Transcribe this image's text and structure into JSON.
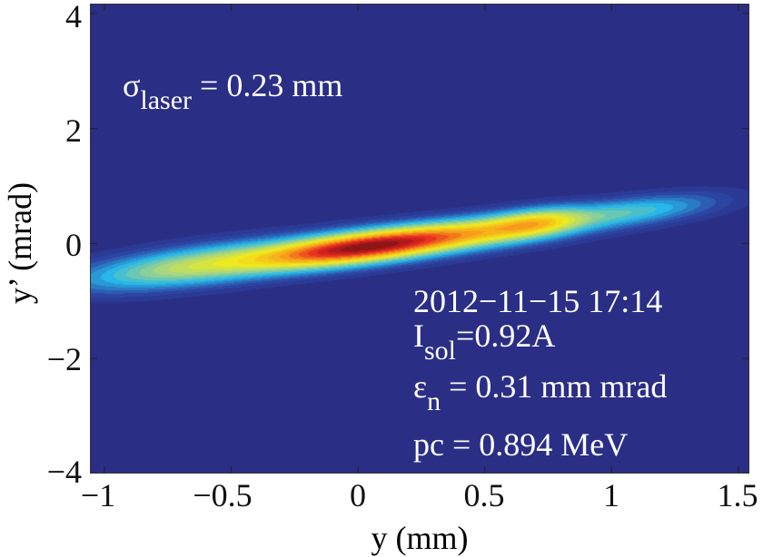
{
  "chart_data": {
    "type": "heatmap",
    "subtype": "filled contour (phase space)",
    "xlabel": "y (mm)",
    "ylabel": "y’ (mrad)",
    "xlim": [
      -1.057,
      1.543
    ],
    "ylim": [
      -4,
      4.17
    ],
    "xticks": [
      -1,
      -0.5,
      0,
      0.5,
      1,
      1.5
    ],
    "xtick_labels": [
      "−1",
      "−0.5",
      "0",
      "0.5",
      "1",
      "1.5"
    ],
    "yticks": [
      4,
      2,
      0,
      -2,
      -4
    ],
    "ytick_labels": [
      "4",
      "2",
      "0",
      "−2",
      "−4"
    ],
    "colormap": "jet",
    "beam_axis": {
      "slope": 0.52,
      "offset": -0.05
    },
    "components": [
      {
        "x": 0.0,
        "d": -0.02,
        "sx": 0.25,
        "sd": 0.17,
        "amp": 1.0
      },
      {
        "x": 0.45,
        "d": 0.0,
        "sx": 0.3,
        "sd": 0.17,
        "amp": 0.55
      },
      {
        "x": 0.7,
        "d": 0.05,
        "sx": 0.12,
        "sd": 0.15,
        "amp": 0.35
      },
      {
        "x": -0.6,
        "d": 0.0,
        "sx": 0.3,
        "sd": 0.2,
        "amp": 0.45
      },
      {
        "x": 1.1,
        "d": 0.05,
        "sx": 0.2,
        "sd": 0.15,
        "amp": 0.2
      }
    ],
    "annotations": {
      "sigma_symbol": "σ",
      "sigma_sub": "laser",
      "sigma_value": " = 0.23 mm",
      "timestamp": "2012−11−15 17:14",
      "isol_symbol": "I",
      "isol_sub": "sol",
      "isol_value": "=0.92A",
      "eps_symbol": "ε",
      "eps_sub": "n",
      "eps_value": " = 0.31 mm mrad",
      "pc": "pc = 0.894 MeV"
    }
  },
  "colors": {
    "background": "#2a2e85",
    "stops": [
      "#2a2e85",
      "#2d4aa8",
      "#27b7e8",
      "#9fd48a",
      "#f2ec1a",
      "#f7a21b",
      "#e52420",
      "#6b0f12"
    ]
  }
}
